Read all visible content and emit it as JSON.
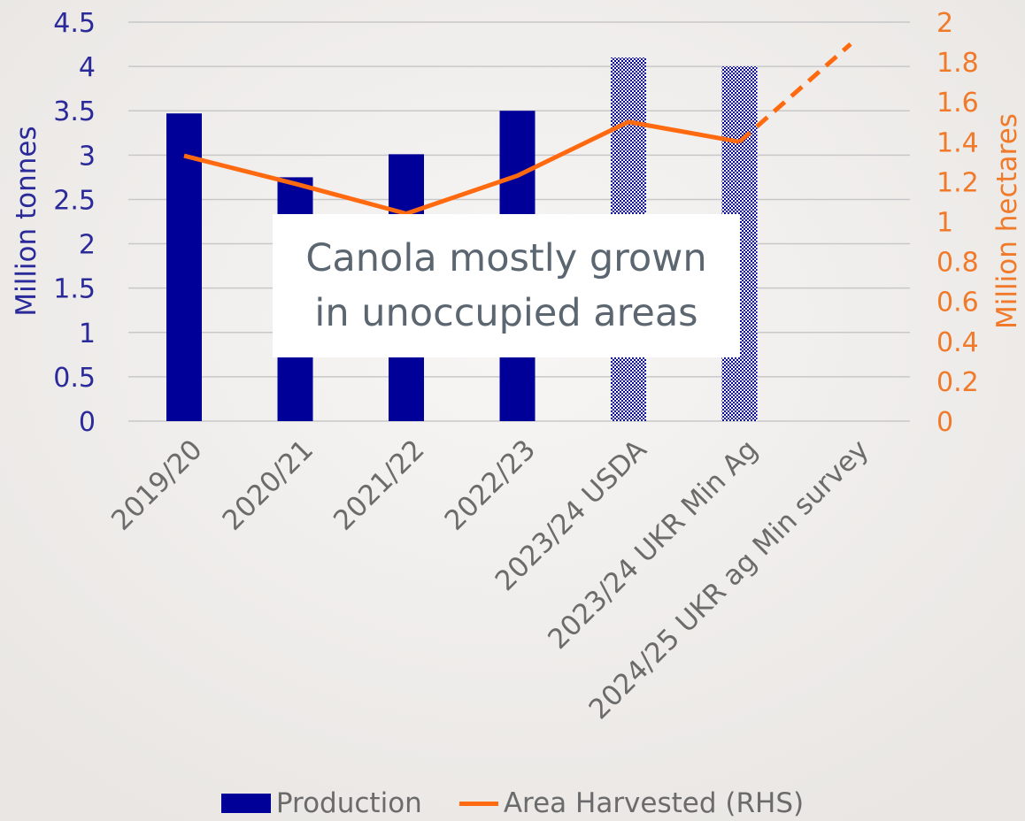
{
  "chart_data": {
    "type": "bar",
    "categories": [
      "2019/20",
      "2020/21",
      "2021/22",
      "2022/23",
      "2023/24 USDA",
      "2023/24 UKR Min Ag",
      "2024/25 UKR ag Min survey"
    ],
    "ylabel": "Million tonnes",
    "y2label": "Million hectares",
    "ylim": [
      0,
      4.5
    ],
    "y2lim": [
      0,
      2
    ],
    "yticks": [
      "0",
      "0.5",
      "1",
      "1.5",
      "2",
      "2.5",
      "3",
      "3.5",
      "4",
      "4.5"
    ],
    "y2ticks": [
      "0",
      "0.2",
      "0.4",
      "0.6",
      "0.8",
      "1",
      "1.2",
      "1.4",
      "1.6",
      "1.8",
      "2"
    ],
    "grid": true,
    "legend_position": "bottom",
    "series": [
      {
        "name": "Production",
        "type": "bar",
        "axis": "left",
        "values": [
          3.47,
          2.75,
          3.01,
          3.5,
          4.1,
          4.0,
          null
        ],
        "patterned": [
          false,
          false,
          false,
          false,
          true,
          true,
          false
        ],
        "color": "#000099"
      },
      {
        "name": "Area Harvested (RHS)",
        "type": "line",
        "axis": "right",
        "values": [
          1.33,
          1.19,
          1.04,
          1.23,
          1.5,
          1.4,
          1.89
        ],
        "dashed_from_index": 5,
        "color": "#ff6a10"
      }
    ],
    "annotation": {
      "line1": "Canola mostly grown",
      "line2": "in unoccupied areas"
    }
  },
  "colors": {
    "bar": "#000099",
    "line": "#ff6a10",
    "left_axis_text": "#2a2a9a",
    "right_axis_text": "#f07a2a",
    "grid": "#c8c8c8",
    "category_text": "#6b6b6b"
  }
}
